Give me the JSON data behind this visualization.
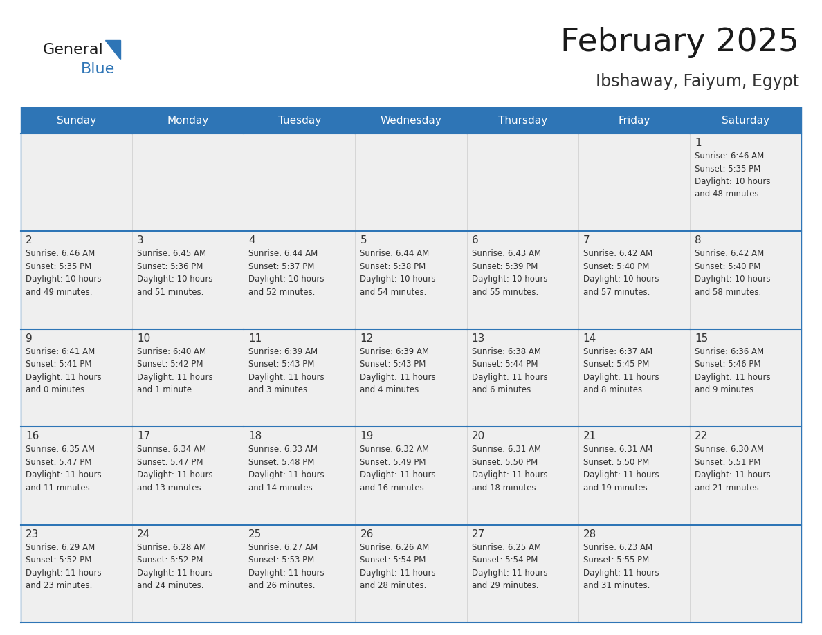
{
  "title": "February 2025",
  "subtitle": "Ibshaway, Faiyum, Egypt",
  "days_of_week": [
    "Sunday",
    "Monday",
    "Tuesday",
    "Wednesday",
    "Thursday",
    "Friday",
    "Saturday"
  ],
  "header_bg": "#2E75B6",
  "header_text_color": "#FFFFFF",
  "cell_bg_light": "#EFEFEF",
  "border_color": "#2E75B6",
  "text_color": "#333333",
  "title_color": "#1a1a1a",
  "subtitle_color": "#333333",
  "logo_black": "#1a1a1a",
  "logo_blue": "#2E75B6",
  "calendar_data": [
    [
      null,
      null,
      null,
      null,
      null,
      null,
      {
        "day": "1",
        "sunrise": "6:46 AM",
        "sunset": "5:35 PM",
        "daylight_line1": "Daylight: 10 hours",
        "daylight_line2": "and 48 minutes."
      }
    ],
    [
      {
        "day": "2",
        "sunrise": "6:46 AM",
        "sunset": "5:35 PM",
        "daylight_line1": "Daylight: 10 hours",
        "daylight_line2": "and 49 minutes."
      },
      {
        "day": "3",
        "sunrise": "6:45 AM",
        "sunset": "5:36 PM",
        "daylight_line1": "Daylight: 10 hours",
        "daylight_line2": "and 51 minutes."
      },
      {
        "day": "4",
        "sunrise": "6:44 AM",
        "sunset": "5:37 PM",
        "daylight_line1": "Daylight: 10 hours",
        "daylight_line2": "and 52 minutes."
      },
      {
        "day": "5",
        "sunrise": "6:44 AM",
        "sunset": "5:38 PM",
        "daylight_line1": "Daylight: 10 hours",
        "daylight_line2": "and 54 minutes."
      },
      {
        "day": "6",
        "sunrise": "6:43 AM",
        "sunset": "5:39 PM",
        "daylight_line1": "Daylight: 10 hours",
        "daylight_line2": "and 55 minutes."
      },
      {
        "day": "7",
        "sunrise": "6:42 AM",
        "sunset": "5:40 PM",
        "daylight_line1": "Daylight: 10 hours",
        "daylight_line2": "and 57 minutes."
      },
      {
        "day": "8",
        "sunrise": "6:42 AM",
        "sunset": "5:40 PM",
        "daylight_line1": "Daylight: 10 hours",
        "daylight_line2": "and 58 minutes."
      }
    ],
    [
      {
        "day": "9",
        "sunrise": "6:41 AM",
        "sunset": "5:41 PM",
        "daylight_line1": "Daylight: 11 hours",
        "daylight_line2": "and 0 minutes."
      },
      {
        "day": "10",
        "sunrise": "6:40 AM",
        "sunset": "5:42 PM",
        "daylight_line1": "Daylight: 11 hours",
        "daylight_line2": "and 1 minute."
      },
      {
        "day": "11",
        "sunrise": "6:39 AM",
        "sunset": "5:43 PM",
        "daylight_line1": "Daylight: 11 hours",
        "daylight_line2": "and 3 minutes."
      },
      {
        "day": "12",
        "sunrise": "6:39 AM",
        "sunset": "5:43 PM",
        "daylight_line1": "Daylight: 11 hours",
        "daylight_line2": "and 4 minutes."
      },
      {
        "day": "13",
        "sunrise": "6:38 AM",
        "sunset": "5:44 PM",
        "daylight_line1": "Daylight: 11 hours",
        "daylight_line2": "and 6 minutes."
      },
      {
        "day": "14",
        "sunrise": "6:37 AM",
        "sunset": "5:45 PM",
        "daylight_line1": "Daylight: 11 hours",
        "daylight_line2": "and 8 minutes."
      },
      {
        "day": "15",
        "sunrise": "6:36 AM",
        "sunset": "5:46 PM",
        "daylight_line1": "Daylight: 11 hours",
        "daylight_line2": "and 9 minutes."
      }
    ],
    [
      {
        "day": "16",
        "sunrise": "6:35 AM",
        "sunset": "5:47 PM",
        "daylight_line1": "Daylight: 11 hours",
        "daylight_line2": "and 11 minutes."
      },
      {
        "day": "17",
        "sunrise": "6:34 AM",
        "sunset": "5:47 PM",
        "daylight_line1": "Daylight: 11 hours",
        "daylight_line2": "and 13 minutes."
      },
      {
        "day": "18",
        "sunrise": "6:33 AM",
        "sunset": "5:48 PM",
        "daylight_line1": "Daylight: 11 hours",
        "daylight_line2": "and 14 minutes."
      },
      {
        "day": "19",
        "sunrise": "6:32 AM",
        "sunset": "5:49 PM",
        "daylight_line1": "Daylight: 11 hours",
        "daylight_line2": "and 16 minutes."
      },
      {
        "day": "20",
        "sunrise": "6:31 AM",
        "sunset": "5:50 PM",
        "daylight_line1": "Daylight: 11 hours",
        "daylight_line2": "and 18 minutes."
      },
      {
        "day": "21",
        "sunrise": "6:31 AM",
        "sunset": "5:50 PM",
        "daylight_line1": "Daylight: 11 hours",
        "daylight_line2": "and 19 minutes."
      },
      {
        "day": "22",
        "sunrise": "6:30 AM",
        "sunset": "5:51 PM",
        "daylight_line1": "Daylight: 11 hours",
        "daylight_line2": "and 21 minutes."
      }
    ],
    [
      {
        "day": "23",
        "sunrise": "6:29 AM",
        "sunset": "5:52 PM",
        "daylight_line1": "Daylight: 11 hours",
        "daylight_line2": "and 23 minutes."
      },
      {
        "day": "24",
        "sunrise": "6:28 AM",
        "sunset": "5:52 PM",
        "daylight_line1": "Daylight: 11 hours",
        "daylight_line2": "and 24 minutes."
      },
      {
        "day": "25",
        "sunrise": "6:27 AM",
        "sunset": "5:53 PM",
        "daylight_line1": "Daylight: 11 hours",
        "daylight_line2": "and 26 minutes."
      },
      {
        "day": "26",
        "sunrise": "6:26 AM",
        "sunset": "5:54 PM",
        "daylight_line1": "Daylight: 11 hours",
        "daylight_line2": "and 28 minutes."
      },
      {
        "day": "27",
        "sunrise": "6:25 AM",
        "sunset": "5:54 PM",
        "daylight_line1": "Daylight: 11 hours",
        "daylight_line2": "and 29 minutes."
      },
      {
        "day": "28",
        "sunrise": "6:23 AM",
        "sunset": "5:55 PM",
        "daylight_line1": "Daylight: 11 hours",
        "daylight_line2": "and 31 minutes."
      },
      null
    ]
  ]
}
